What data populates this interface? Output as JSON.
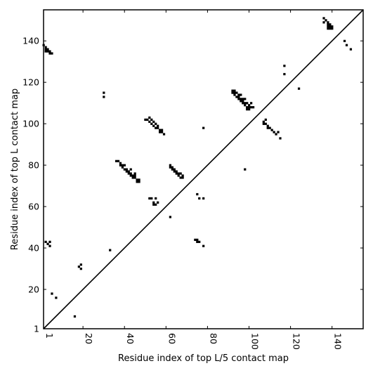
{
  "chart_data": {
    "type": "scatter",
    "title": "",
    "xlabel": "Residue index of top L/5 contact map",
    "ylabel": "Residue index of top L contact map",
    "xlim": [
      1,
      155
    ],
    "ylim": [
      1,
      155
    ],
    "xticks": [
      1,
      20,
      40,
      60,
      80,
      100,
      120,
      140
    ],
    "yticks": [
      1,
      20,
      40,
      60,
      80,
      100,
      120,
      140
    ],
    "xtick_labels": [
      "1",
      "20",
      "40",
      "60",
      "80",
      "100",
      "120",
      "140"
    ],
    "ytick_labels": [
      "1",
      "20",
      "40",
      "60",
      "80",
      "100",
      "120",
      "140"
    ],
    "diagonal": true,
    "marker": "square",
    "marker_color": "#000000",
    "points": [
      [
        1,
        138
      ],
      [
        2,
        137
      ],
      [
        2,
        136
      ],
      [
        2,
        135
      ],
      [
        3,
        135
      ],
      [
        3,
        136
      ],
      [
        4,
        135
      ],
      [
        4,
        134
      ],
      [
        5,
        134
      ],
      [
        30,
        115
      ],
      [
        30,
        113
      ],
      [
        2,
        43
      ],
      [
        3,
        42
      ],
      [
        4,
        41
      ],
      [
        4,
        43
      ],
      [
        5,
        18
      ],
      [
        7,
        16
      ],
      [
        16,
        7
      ],
      [
        18,
        31
      ],
      [
        19,
        30
      ],
      [
        19,
        32
      ],
      [
        33,
        39
      ],
      [
        36,
        82
      ],
      [
        37,
        82
      ],
      [
        38,
        81
      ],
      [
        38,
        80
      ],
      [
        39,
        80
      ],
      [
        39,
        79
      ],
      [
        40,
        80
      ],
      [
        40,
        78
      ],
      [
        41,
        78
      ],
      [
        41,
        77
      ],
      [
        42,
        77
      ],
      [
        42,
        76
      ],
      [
        43,
        76
      ],
      [
        43,
        75
      ],
      [
        44,
        75
      ],
      [
        44,
        74
      ],
      [
        45,
        75
      ],
      [
        45,
        74
      ],
      [
        46,
        73
      ],
      [
        47,
        73
      ],
      [
        47,
        72
      ],
      [
        43,
        78
      ],
      [
        45,
        76
      ],
      [
        46,
        72
      ],
      [
        50,
        102
      ],
      [
        51,
        102
      ],
      [
        52,
        103
      ],
      [
        52,
        101
      ],
      [
        53,
        102
      ],
      [
        53,
        100
      ],
      [
        54,
        101
      ],
      [
        54,
        99
      ],
      [
        55,
        100
      ],
      [
        55,
        98
      ],
      [
        56,
        99
      ],
      [
        56,
        98
      ],
      [
        57,
        97
      ],
      [
        57,
        96
      ],
      [
        58,
        97
      ],
      [
        58,
        96
      ],
      [
        59,
        95
      ],
      [
        52,
        64
      ],
      [
        53,
        64
      ],
      [
        54,
        62
      ],
      [
        55,
        61
      ],
      [
        55,
        64
      ],
      [
        56,
        62
      ],
      [
        54,
        61
      ],
      [
        62,
        55
      ],
      [
        62,
        80
      ],
      [
        62,
        79
      ],
      [
        63,
        79
      ],
      [
        63,
        78
      ],
      [
        64,
        78
      ],
      [
        64,
        77
      ],
      [
        65,
        77
      ],
      [
        65,
        76
      ],
      [
        66,
        76
      ],
      [
        66,
        75
      ],
      [
        67,
        76
      ],
      [
        67,
        74
      ],
      [
        68,
        75
      ],
      [
        68,
        74
      ],
      [
        74,
        44
      ],
      [
        75,
        44
      ],
      [
        75,
        43
      ],
      [
        76,
        43
      ],
      [
        75,
        66
      ],
      [
        76,
        64
      ],
      [
        78,
        64
      ],
      [
        78,
        41
      ],
      [
        78,
        98
      ],
      [
        92,
        116
      ],
      [
        92,
        115
      ],
      [
        93,
        116
      ],
      [
        93,
        115
      ],
      [
        93,
        114
      ],
      [
        94,
        115
      ],
      [
        94,
        113
      ],
      [
        95,
        114
      ],
      [
        95,
        113
      ],
      [
        95,
        112
      ],
      [
        96,
        114
      ],
      [
        96,
        112
      ],
      [
        96,
        111
      ],
      [
        97,
        112
      ],
      [
        97,
        111
      ],
      [
        97,
        110
      ],
      [
        98,
        112
      ],
      [
        98,
        110
      ],
      [
        98,
        109
      ],
      [
        99,
        110
      ],
      [
        99,
        108
      ],
      [
        100,
        109
      ],
      [
        100,
        108
      ],
      [
        100,
        107
      ],
      [
        101,
        110
      ],
      [
        101,
        108
      ],
      [
        99,
        107
      ],
      [
        102,
        108
      ],
      [
        98,
        78
      ],
      [
        107,
        101
      ],
      [
        107,
        100
      ],
      [
        108,
        102
      ],
      [
        108,
        100
      ],
      [
        109,
        99
      ],
      [
        109,
        98
      ],
      [
        110,
        98
      ],
      [
        111,
        97
      ],
      [
        112,
        96
      ],
      [
        113,
        95
      ],
      [
        114,
        96
      ],
      [
        115,
        93
      ],
      [
        117,
        128
      ],
      [
        117,
        124
      ],
      [
        124,
        117
      ],
      [
        136,
        151
      ],
      [
        136,
        149
      ],
      [
        137,
        150
      ],
      [
        138,
        149
      ],
      [
        138,
        148
      ],
      [
        138,
        147
      ],
      [
        138,
        146
      ],
      [
        139,
        148
      ],
      [
        139,
        147
      ],
      [
        139,
        146
      ],
      [
        140,
        147
      ],
      [
        140,
        146
      ],
      [
        146,
        140
      ],
      [
        147,
        138
      ],
      [
        149,
        136
      ]
    ]
  }
}
